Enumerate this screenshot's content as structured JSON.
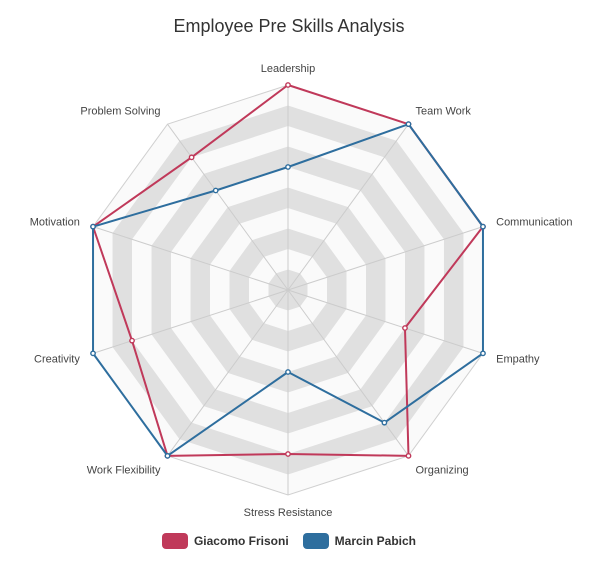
{
  "chart_data": {
    "type": "radar",
    "title": "Employee Pre Skills Analysis",
    "axes": [
      "Leadership",
      "Team Work",
      "Communication",
      "Empathy",
      "Organizing",
      "Stress Resistance",
      "Work Flexibility",
      "Creativity",
      "Motivation",
      "Problem Solving"
    ],
    "rlim": [
      0,
      10
    ],
    "grid_levels": 10,
    "series": [
      {
        "name": "Giacomo Frisoni",
        "color": "#c0395a",
        "values": [
          10,
          10,
          10,
          6,
          10,
          8,
          10,
          8,
          10,
          8
        ]
      },
      {
        "name": "Marcin Pabich",
        "color": "#2e6e9e",
        "values": [
          6,
          10,
          10,
          10,
          8,
          4,
          10,
          10,
          10,
          6
        ]
      }
    ],
    "legend_position": "bottom"
  }
}
